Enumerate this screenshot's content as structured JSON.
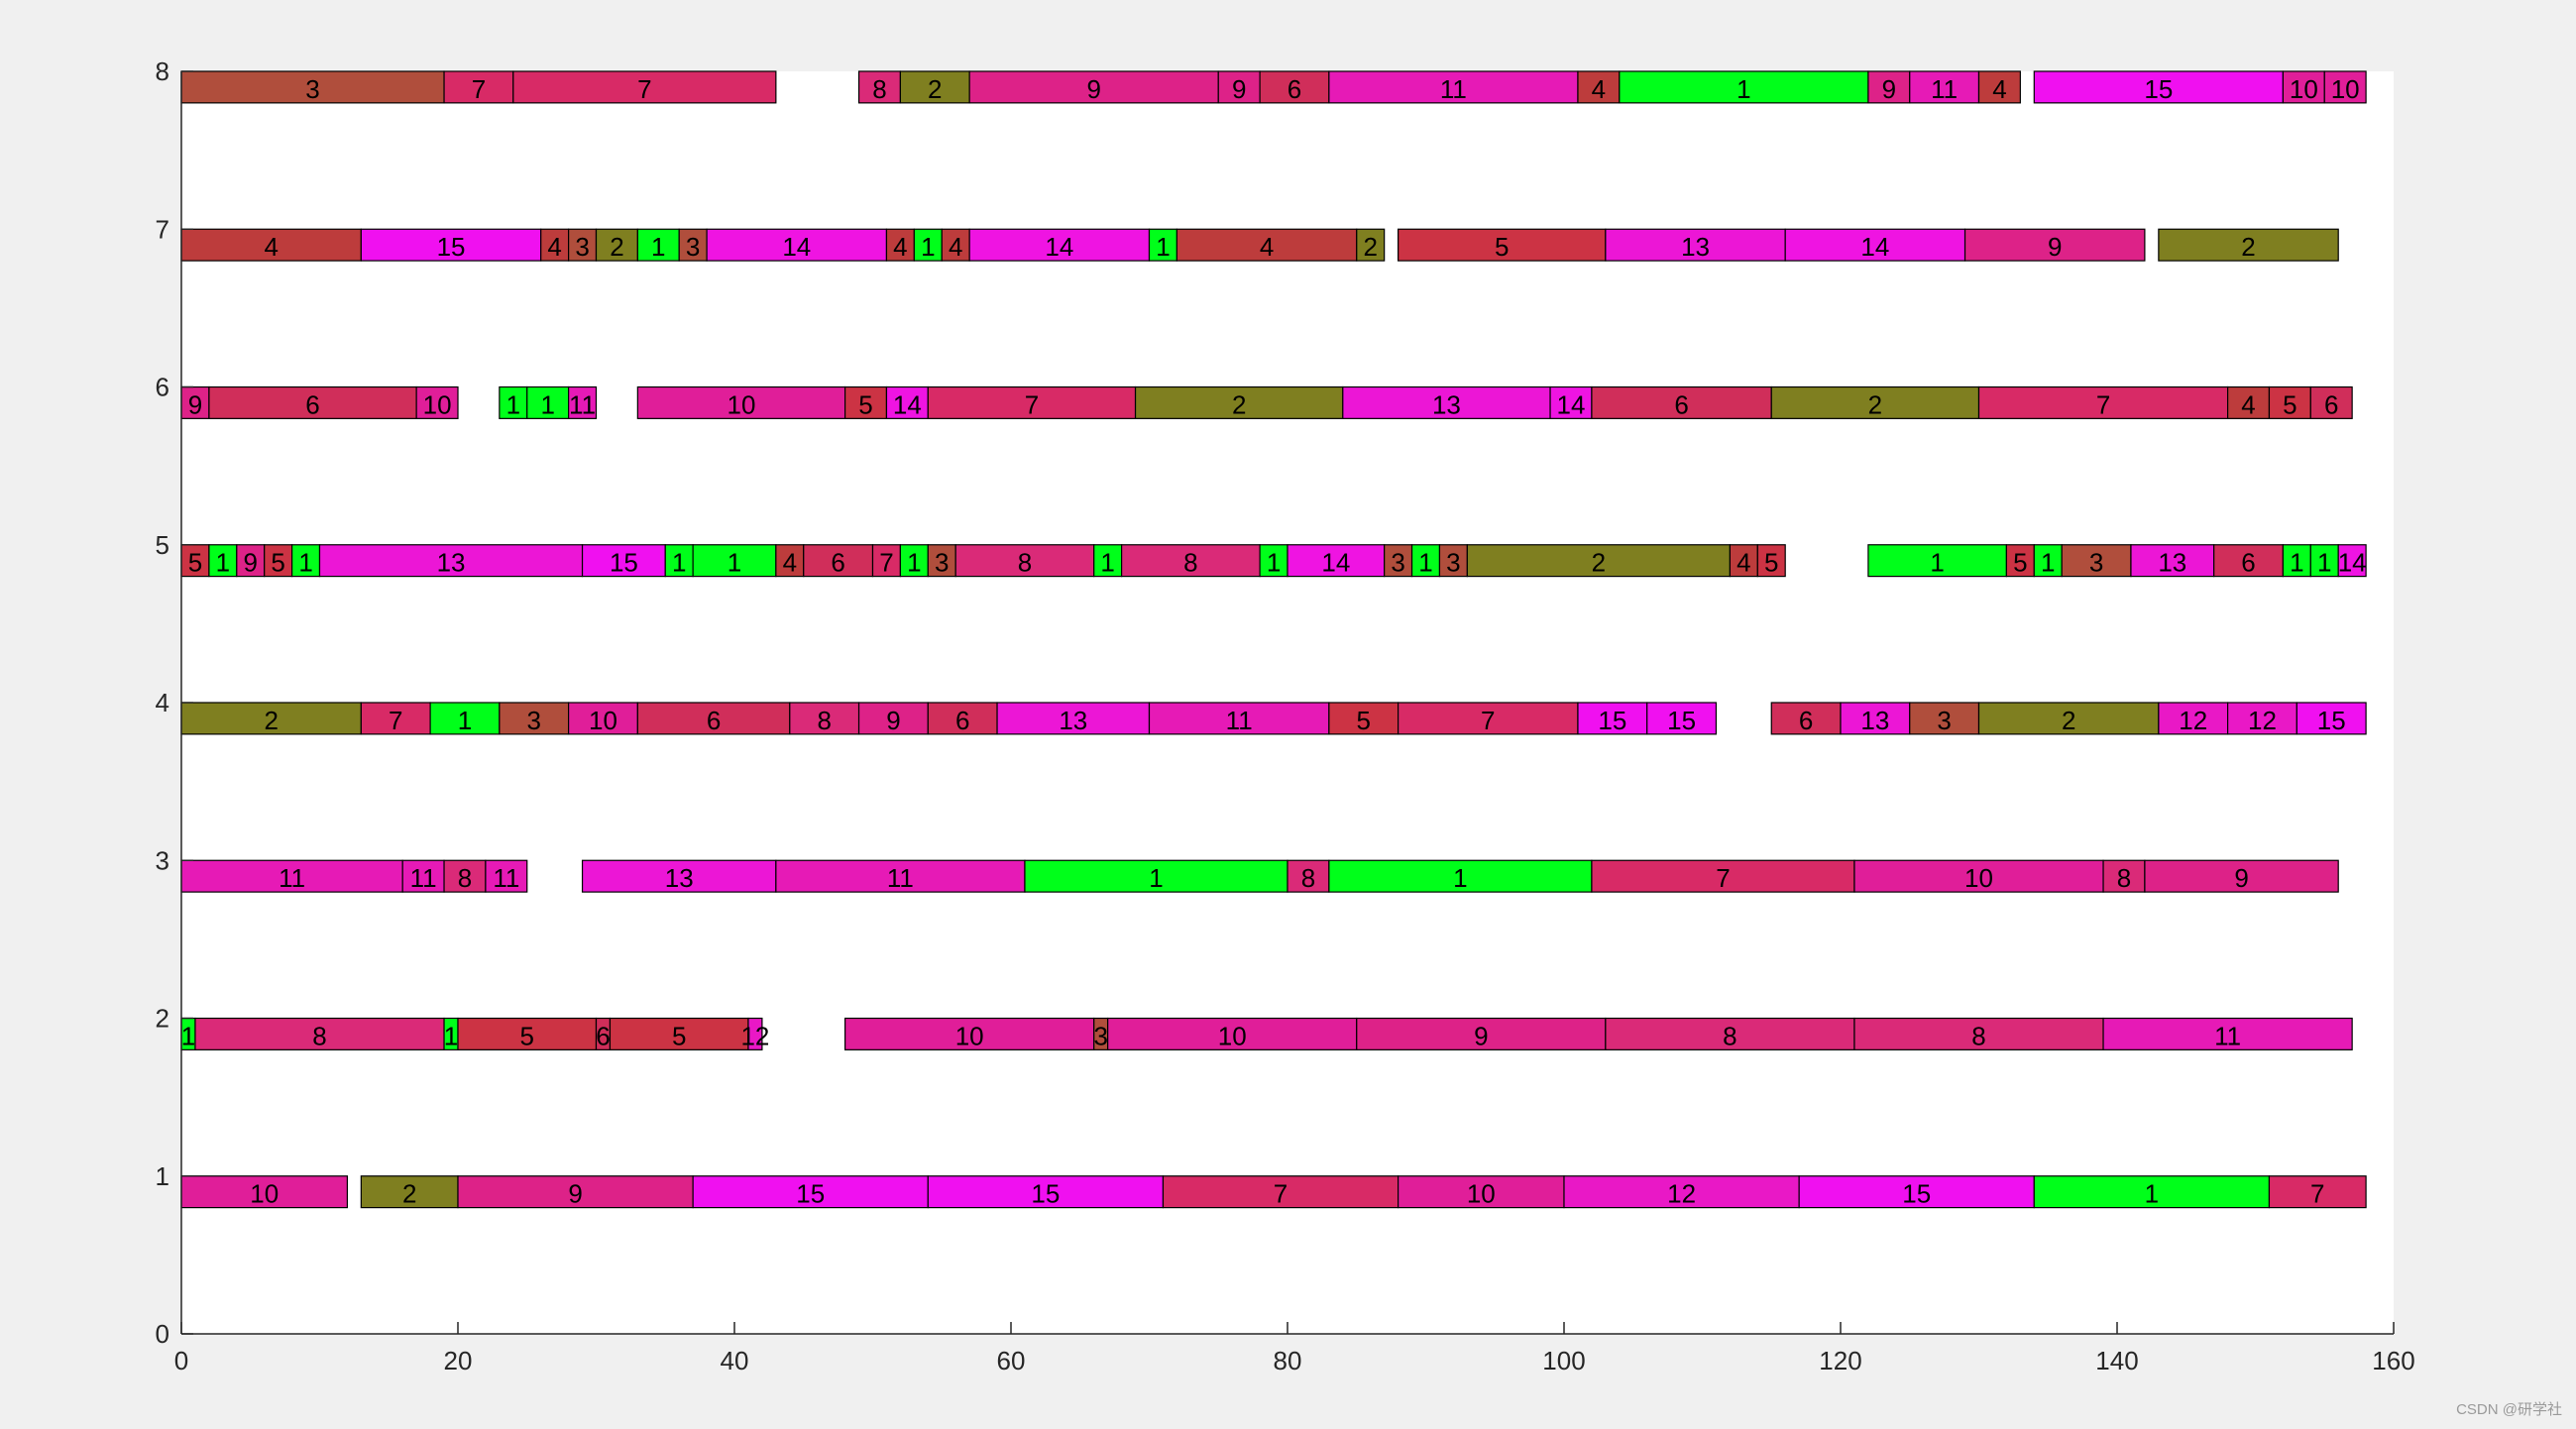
{
  "chart_data": {
    "type": "gantt",
    "title": "",
    "xlabel": "",
    "ylabel": "",
    "xlim": [
      0,
      160
    ],
    "ylim": [
      0,
      8
    ],
    "xticks": [
      0,
      20,
      40,
      60,
      80,
      100,
      120,
      140,
      160
    ],
    "yticks": [
      0,
      1,
      2,
      3,
      4,
      5,
      6,
      7,
      8
    ],
    "grid": false,
    "legend": "none",
    "job_colors": {
      "1": "#00ff1a",
      "2": "#7f7f20",
      "3": "#b04e3c",
      "4": "#bd3c3c",
      "5": "#cc3344",
      "6": "#d02e5a",
      "7": "#d82a66",
      "8": "#da2a78",
      "9": "#dd2288",
      "10": "#e01e99",
      "11": "#e61ab6",
      "12": "#e918c6",
      "13": "#ec16d6",
      "14": "#ef14e2",
      "15": "#f010f0"
    },
    "machines": [
      {
        "machine": 1,
        "ops": [
          {
            "job": 10,
            "start": 0,
            "end": 12
          },
          {
            "job": 2,
            "start": 13,
            "end": 20
          },
          {
            "job": 9,
            "start": 20,
            "end": 37
          },
          {
            "job": 15,
            "start": 37,
            "end": 54
          },
          {
            "job": 15,
            "start": 54,
            "end": 71
          },
          {
            "job": 7,
            "start": 71,
            "end": 88
          },
          {
            "job": 10,
            "start": 88,
            "end": 100
          },
          {
            "job": 12,
            "start": 100,
            "end": 117
          },
          {
            "job": 15,
            "start": 117,
            "end": 134
          },
          {
            "job": 1,
            "start": 134,
            "end": 151
          },
          {
            "job": 7,
            "start": 151,
            "end": 158
          }
        ]
      },
      {
        "machine": 2,
        "ops": [
          {
            "job": 1,
            "start": 0,
            "end": 1
          },
          {
            "job": 8,
            "start": 1,
            "end": 19
          },
          {
            "job": 1,
            "start": 19,
            "end": 20
          },
          {
            "job": 5,
            "start": 20,
            "end": 30
          },
          {
            "job": 6,
            "start": 30,
            "end": 31
          },
          {
            "job": 5,
            "start": 31,
            "end": 41
          },
          {
            "job": 12,
            "start": 41,
            "end": 42
          },
          {
            "job": 10,
            "start": 48,
            "end": 66
          },
          {
            "job": 3,
            "start": 66,
            "end": 67
          },
          {
            "job": 10,
            "start": 67,
            "end": 85
          },
          {
            "job": 9,
            "start": 85,
            "end": 103
          },
          {
            "job": 8,
            "start": 103,
            "end": 121
          },
          {
            "job": 8,
            "start": 121,
            "end": 139
          },
          {
            "job": 11,
            "start": 139,
            "end": 157
          }
        ]
      },
      {
        "machine": 3,
        "ops": [
          {
            "job": 11,
            "start": 0,
            "end": 16
          },
          {
            "job": 11,
            "start": 16,
            "end": 19
          },
          {
            "job": 8,
            "start": 19,
            "end": 22
          },
          {
            "job": 11,
            "start": 22,
            "end": 25
          },
          {
            "job": 13,
            "start": 29,
            "end": 43
          },
          {
            "job": 11,
            "start": 43,
            "end": 61
          },
          {
            "job": 1,
            "start": 61,
            "end": 80
          },
          {
            "job": 8,
            "start": 80,
            "end": 83
          },
          {
            "job": 1,
            "start": 83,
            "end": 102
          },
          {
            "job": 7,
            "start": 102,
            "end": 121
          },
          {
            "job": 10,
            "start": 121,
            "end": 139
          },
          {
            "job": 8,
            "start": 139,
            "end": 142
          },
          {
            "job": 9,
            "start": 142,
            "end": 156
          }
        ]
      },
      {
        "machine": 4,
        "ops": [
          {
            "job": 2,
            "start": 0,
            "end": 13
          },
          {
            "job": 7,
            "start": 13,
            "end": 18
          },
          {
            "job": 1,
            "start": 18,
            "end": 23
          },
          {
            "job": 3,
            "start": 23,
            "end": 28
          },
          {
            "job": 10,
            "start": 28,
            "end": 33
          },
          {
            "job": 6,
            "start": 33,
            "end": 44
          },
          {
            "job": 8,
            "start": 44,
            "end": 49
          },
          {
            "job": 9,
            "start": 49,
            "end": 54
          },
          {
            "job": 6,
            "start": 54,
            "end": 59
          },
          {
            "job": 13,
            "start": 59,
            "end": 70
          },
          {
            "job": 11,
            "start": 70,
            "end": 83
          },
          {
            "job": 5,
            "start": 83,
            "end": 88
          },
          {
            "job": 7,
            "start": 88,
            "end": 101
          },
          {
            "job": 15,
            "start": 101,
            "end": 106
          },
          {
            "job": 15,
            "start": 106,
            "end": 111
          },
          {
            "job": 6,
            "start": 115,
            "end": 120
          },
          {
            "job": 13,
            "start": 120,
            "end": 125
          },
          {
            "job": 3,
            "start": 125,
            "end": 130
          },
          {
            "job": 2,
            "start": 130,
            "end": 143
          },
          {
            "job": 12,
            "start": 143,
            "end": 148
          },
          {
            "job": 12,
            "start": 148,
            "end": 153
          },
          {
            "job": 15,
            "start": 153,
            "end": 158
          }
        ]
      },
      {
        "machine": 5,
        "ops": [
          {
            "job": 5,
            "start": 0,
            "end": 2
          },
          {
            "job": 1,
            "start": 2,
            "end": 4
          },
          {
            "job": 9,
            "start": 4,
            "end": 6
          },
          {
            "job": 5,
            "start": 6,
            "end": 8
          },
          {
            "job": 1,
            "start": 8,
            "end": 10
          },
          {
            "job": 13,
            "start": 10,
            "end": 29
          },
          {
            "job": 15,
            "start": 29,
            "end": 35
          },
          {
            "job": 1,
            "start": 35,
            "end": 37
          },
          {
            "job": 1,
            "start": 37,
            "end": 43
          },
          {
            "job": 4,
            "start": 43,
            "end": 45
          },
          {
            "job": 6,
            "start": 45,
            "end": 50
          },
          {
            "job": 7,
            "start": 50,
            "end": 52
          },
          {
            "job": 1,
            "start": 52,
            "end": 54
          },
          {
            "job": 3,
            "start": 54,
            "end": 56
          },
          {
            "job": 8,
            "start": 56,
            "end": 66
          },
          {
            "job": 1,
            "start": 66,
            "end": 68
          },
          {
            "job": 8,
            "start": 68,
            "end": 78
          },
          {
            "job": 1,
            "start": 78,
            "end": 80
          },
          {
            "job": 14,
            "start": 80,
            "end": 87
          },
          {
            "job": 3,
            "start": 87,
            "end": 89
          },
          {
            "job": 1,
            "start": 89,
            "end": 91
          },
          {
            "job": 3,
            "start": 91,
            "end": 93
          },
          {
            "job": 2,
            "start": 93,
            "end": 112
          },
          {
            "job": 4,
            "start": 112,
            "end": 114
          },
          {
            "job": 5,
            "start": 114,
            "end": 116
          },
          {
            "job": 1,
            "start": 122,
            "end": 132
          },
          {
            "job": 5,
            "start": 132,
            "end": 134
          },
          {
            "job": 1,
            "start": 134,
            "end": 136
          },
          {
            "job": 3,
            "start": 136,
            "end": 141
          },
          {
            "job": 13,
            "start": 141,
            "end": 147
          },
          {
            "job": 6,
            "start": 147,
            "end": 152
          },
          {
            "job": 1,
            "start": 152,
            "end": 154
          },
          {
            "job": 1,
            "start": 154,
            "end": 156
          },
          {
            "job": 14,
            "start": 156,
            "end": 158
          }
        ]
      },
      {
        "machine": 6,
        "ops": [
          {
            "job": 9,
            "start": 0,
            "end": 2
          },
          {
            "job": 6,
            "start": 2,
            "end": 17
          },
          {
            "job": 10,
            "start": 17,
            "end": 20
          },
          {
            "job": 1,
            "start": 23,
            "end": 25
          },
          {
            "job": 1,
            "start": 25,
            "end": 28
          },
          {
            "job": 11,
            "start": 28,
            "end": 30
          },
          {
            "job": 10,
            "start": 33,
            "end": 48
          },
          {
            "job": 5,
            "start": 48,
            "end": 51
          },
          {
            "job": 14,
            "start": 51,
            "end": 54
          },
          {
            "job": 7,
            "start": 54,
            "end": 69
          },
          {
            "job": 2,
            "start": 69,
            "end": 84
          },
          {
            "job": 13,
            "start": 84,
            "end": 99
          },
          {
            "job": 14,
            "start": 99,
            "end": 102
          },
          {
            "job": 6,
            "start": 102,
            "end": 115
          },
          {
            "job": 2,
            "start": 115,
            "end": 130
          },
          {
            "job": 7,
            "start": 130,
            "end": 148
          },
          {
            "job": 4,
            "start": 148,
            "end": 151
          },
          {
            "job": 5,
            "start": 151,
            "end": 154
          },
          {
            "job": 6,
            "start": 154,
            "end": 157
          }
        ]
      },
      {
        "machine": 7,
        "ops": [
          {
            "job": 4,
            "start": 0,
            "end": 13
          },
          {
            "job": 15,
            "start": 13,
            "end": 26
          },
          {
            "job": 4,
            "start": 26,
            "end": 28
          },
          {
            "job": 3,
            "start": 28,
            "end": 30
          },
          {
            "job": 2,
            "start": 30,
            "end": 33
          },
          {
            "job": 1,
            "start": 33,
            "end": 36
          },
          {
            "job": 3,
            "start": 36,
            "end": 38
          },
          {
            "job": 14,
            "start": 38,
            "end": 51
          },
          {
            "job": 4,
            "start": 51,
            "end": 53
          },
          {
            "job": 1,
            "start": 53,
            "end": 55
          },
          {
            "job": 4,
            "start": 55,
            "end": 57
          },
          {
            "job": 14,
            "start": 57,
            "end": 70
          },
          {
            "job": 1,
            "start": 70,
            "end": 72
          },
          {
            "job": 4,
            "start": 72,
            "end": 85
          },
          {
            "job": 2,
            "start": 85,
            "end": 87
          },
          {
            "job": 5,
            "start": 88,
            "end": 103
          },
          {
            "job": 13,
            "start": 103,
            "end": 116
          },
          {
            "job": 14,
            "start": 116,
            "end": 129
          },
          {
            "job": 9,
            "start": 129,
            "end": 142
          },
          {
            "job": 2,
            "start": 143,
            "end": 156
          }
        ]
      },
      {
        "machine": 8,
        "ops": [
          {
            "job": 3,
            "start": 0,
            "end": 19
          },
          {
            "job": 7,
            "start": 19,
            "end": 24
          },
          {
            "job": 7,
            "start": 24,
            "end": 43
          },
          {
            "job": 8,
            "start": 49,
            "end": 52
          },
          {
            "job": 2,
            "start": 52,
            "end": 57
          },
          {
            "job": 9,
            "start": 57,
            "end": 75
          },
          {
            "job": 9,
            "start": 75,
            "end": 78
          },
          {
            "job": 6,
            "start": 78,
            "end": 83
          },
          {
            "job": 11,
            "start": 83,
            "end": 101
          },
          {
            "job": 4,
            "start": 101,
            "end": 104
          },
          {
            "job": 1,
            "start": 104,
            "end": 122
          },
          {
            "job": 9,
            "start": 122,
            "end": 125
          },
          {
            "job": 11,
            "start": 125,
            "end": 130
          },
          {
            "job": 4,
            "start": 130,
            "end": 133
          },
          {
            "job": 15,
            "start": 134,
            "end": 152
          },
          {
            "job": 10,
            "start": 152,
            "end": 155
          },
          {
            "job": 10,
            "start": 155,
            "end": 158
          }
        ]
      }
    ]
  },
  "watermark": "CSDN @研学社"
}
